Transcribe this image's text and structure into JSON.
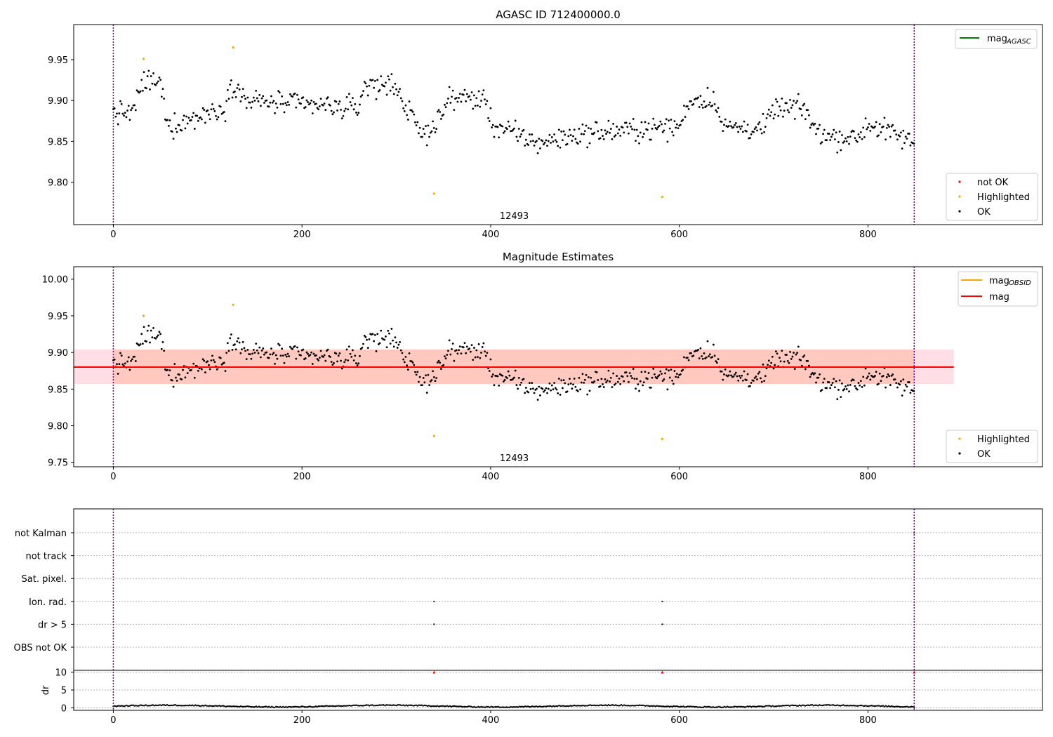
{
  "chart_data": [
    {
      "type": "scatter",
      "title": "AGASC ID 712400000.0",
      "x_ticks": [
        0,
        200,
        400,
        600,
        800
      ],
      "y_ticks": [
        9.8,
        9.85,
        9.9,
        9.95
      ],
      "y_tick_labels": [
        "9.80",
        "9.85",
        "9.90",
        "9.95"
      ],
      "xlim": [
        -42,
        985
      ],
      "ylim": [
        9.748,
        9.993
      ],
      "grid": false,
      "obsid_label": "12493",
      "obsid_label_x": 425,
      "vlines_x": [
        0,
        849
      ],
      "vline_color": "#800080",
      "lines_legend": {
        "placement": "top-right",
        "entries": [
          {
            "base": "mag",
            "sub": "AGASC",
            "color": "#008000"
          }
        ]
      },
      "points_legend": {
        "placement": "bottom-right",
        "entries": [
          {
            "label": "not OK",
            "color": "#ff0000"
          },
          {
            "label": "Highlighted",
            "color": "#ffa500"
          },
          {
            "label": "OK",
            "color": "#000000"
          }
        ]
      },
      "highlighted_points": [
        {
          "x": 32,
          "y": 9.951
        },
        {
          "x": 127,
          "y": 9.965
        },
        {
          "x": 340,
          "y": 9.786
        },
        {
          "x": 582,
          "y": 9.782
        }
      ]
    },
    {
      "type": "scatter",
      "title": "Magnitude Estimates",
      "x_ticks": [
        0,
        200,
        400,
        600,
        800
      ],
      "y_ticks": [
        9.75,
        9.8,
        9.85,
        9.9,
        9.95,
        10.0
      ],
      "y_tick_labels": [
        "9.75",
        "9.80",
        "9.85",
        "9.90",
        "9.95",
        "10.00"
      ],
      "xlim": [
        -42,
        985
      ],
      "ylim": [
        9.744,
        10.017
      ],
      "grid": false,
      "obsid_label": "12493",
      "obsid_label_x": 425,
      "vlines_x": [
        0,
        849
      ],
      "mag_line": {
        "y": 9.88,
        "x_start": -42,
        "x_end": 891,
        "color": "#ff0000"
      },
      "mag_band": {
        "y_low": 9.857,
        "y_high": 9.904,
        "x_start": -42,
        "x_end": 891,
        "color": "#ffc0cb"
      },
      "obsid_band": {
        "y_low": 9.857,
        "y_high": 9.904,
        "x_start": 0,
        "x_end": 849,
        "color": "#ffa07a"
      },
      "lines_legend": {
        "placement": "top-right",
        "entries": [
          {
            "base": "mag",
            "sub": "OBSID",
            "color": "#ffa500"
          },
          {
            "base": "mag",
            "sub": "",
            "color": "#ff0000"
          }
        ]
      },
      "points_legend": {
        "placement": "bottom-right",
        "entries": [
          {
            "label": "Highlighted",
            "color": "#ffa500"
          },
          {
            "label": "OK",
            "color": "#000000"
          }
        ]
      },
      "highlighted_points": [
        {
          "x": 32,
          "y": 9.95
        },
        {
          "x": 127,
          "y": 9.965
        },
        {
          "x": 340,
          "y": 9.786
        },
        {
          "x": 582,
          "y": 9.782
        }
      ]
    },
    {
      "type": "scatter",
      "title": "",
      "x_ticks": [
        0,
        200,
        400,
        600,
        800
      ],
      "xlim": [
        -42,
        985
      ],
      "grid": true,
      "vlines_x": [
        0,
        849
      ],
      "flag_categories": [
        "not Kalman",
        "not track",
        "Sat. pixel.",
        "Ion. rad.",
        "dr > 5",
        "OBS not OK"
      ],
      "flag_points": [
        {
          "flag": "Ion. rad.",
          "x": 340
        },
        {
          "flag": "Ion. rad.",
          "x": 582
        },
        {
          "flag": "dr > 5",
          "x": 340
        },
        {
          "flag": "dr > 5",
          "x": 582
        },
        {
          "flag": "not Kalman",
          "x": 849
        }
      ],
      "dr_ylabel": "dr",
      "dr_ticks": [
        0,
        5,
        10
      ],
      "dr_tick_labels": [
        "0",
        "5",
        "10"
      ],
      "dr_ylim": [
        -0.7,
        10.5
      ],
      "dr_clipped_points": [
        {
          "x": 340,
          "y": 10
        },
        {
          "x": 582,
          "y": 10
        },
        {
          "x": 849,
          "y": 10
        }
      ]
    }
  ]
}
